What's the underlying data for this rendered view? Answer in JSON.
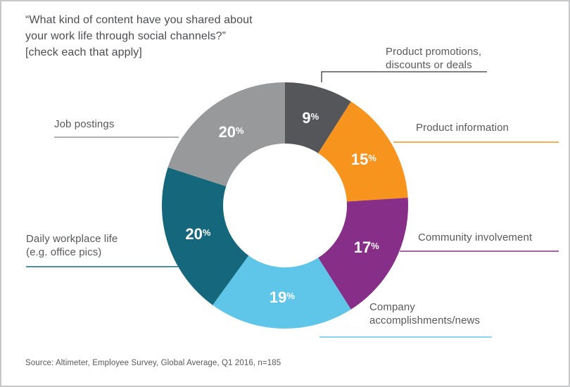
{
  "title": {
    "lines": [
      "“What kind of content have you shared about",
      "your work life through social channels?”",
      "[check each that apply]"
    ]
  },
  "source": {
    "text": "Source: Altimeter, Employee Survey, Global Average, Q1 2016, n=185"
  },
  "chart_data": {
    "type": "pie",
    "variant": "donut",
    "title": "“What kind of content have you shared about your work life through social channels?” [check each that apply]",
    "direction": "clockwise",
    "start_angle_deg": 0,
    "inner_radius_ratio": 0.5,
    "total": 100,
    "unit": "%",
    "legend_position": "outside-callouts",
    "slices": [
      {
        "label": "Product promotions, discounts or deals",
        "value": 9,
        "pct_label": "9%",
        "color": "#54565a"
      },
      {
        "label": "Product information",
        "value": 15,
        "pct_label": "15%",
        "color": "#f7941e"
      },
      {
        "label": "Community involvement",
        "value": 17,
        "pct_label": "17%",
        "color": "#872e88"
      },
      {
        "label": "Company accomplishments/news",
        "value": 19,
        "pct_label": "19%",
        "color": "#5fc6ea"
      },
      {
        "label": "Daily workplace life (e.g. office pics)",
        "value": 20,
        "pct_label": "20%",
        "color": "#15687c"
      },
      {
        "label": "Job postings",
        "value": 20,
        "pct_label": "20%",
        "color": "#98999b"
      }
    ],
    "source": "Source: Altimeter, Employee Survey, Global Average, Q1 2016, n=185"
  }
}
